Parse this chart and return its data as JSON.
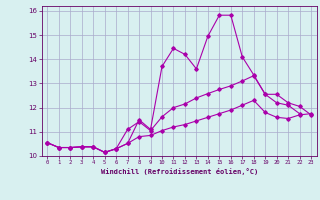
{
  "xlabel": "Windchill (Refroidissement éolien,°C)",
  "background_color": "#d8f0f0",
  "line_color": "#aa00aa",
  "grid_color": "#aaaacc",
  "xlim": [
    -0.5,
    23.5
  ],
  "ylim": [
    10,
    16.2
  ],
  "xticks": [
    0,
    1,
    2,
    3,
    4,
    5,
    6,
    7,
    8,
    9,
    10,
    11,
    12,
    13,
    14,
    15,
    16,
    17,
    18,
    19,
    20,
    21,
    22,
    23
  ],
  "yticks": [
    10,
    11,
    12,
    13,
    14,
    15,
    16
  ],
  "series1_x": [
    0,
    1,
    2,
    3,
    4,
    5,
    6,
    7,
    8,
    9,
    10,
    11,
    12,
    13,
    14,
    15,
    16,
    17,
    18,
    19,
    20,
    21,
    22
  ],
  "series1_y": [
    10.55,
    10.35,
    10.35,
    10.38,
    10.38,
    10.15,
    10.3,
    10.52,
    11.5,
    11.1,
    13.7,
    14.45,
    14.2,
    13.6,
    14.95,
    15.82,
    15.82,
    14.1,
    13.35,
    12.55,
    12.2,
    12.1,
    11.75
  ],
  "series2_x": [
    0,
    1,
    2,
    3,
    4,
    5,
    6,
    7,
    8,
    9,
    10,
    11,
    12,
    13,
    14,
    15,
    16,
    17,
    18,
    19,
    20,
    21,
    22,
    23
  ],
  "series2_y": [
    10.55,
    10.35,
    10.35,
    10.38,
    10.38,
    10.15,
    10.3,
    11.1,
    11.42,
    11.05,
    11.62,
    12.0,
    12.15,
    12.4,
    12.58,
    12.75,
    12.9,
    13.1,
    13.32,
    12.55,
    12.55,
    12.2,
    12.05,
    11.7
  ],
  "series3_x": [
    0,
    1,
    2,
    3,
    4,
    5,
    6,
    7,
    8,
    9,
    10,
    11,
    12,
    13,
    14,
    15,
    16,
    17,
    18,
    19,
    20,
    21,
    22,
    23
  ],
  "series3_y": [
    10.55,
    10.35,
    10.35,
    10.38,
    10.38,
    10.15,
    10.3,
    10.52,
    10.8,
    10.85,
    11.05,
    11.2,
    11.3,
    11.45,
    11.6,
    11.75,
    11.9,
    12.1,
    12.3,
    11.8,
    11.6,
    11.55,
    11.7,
    11.75
  ]
}
